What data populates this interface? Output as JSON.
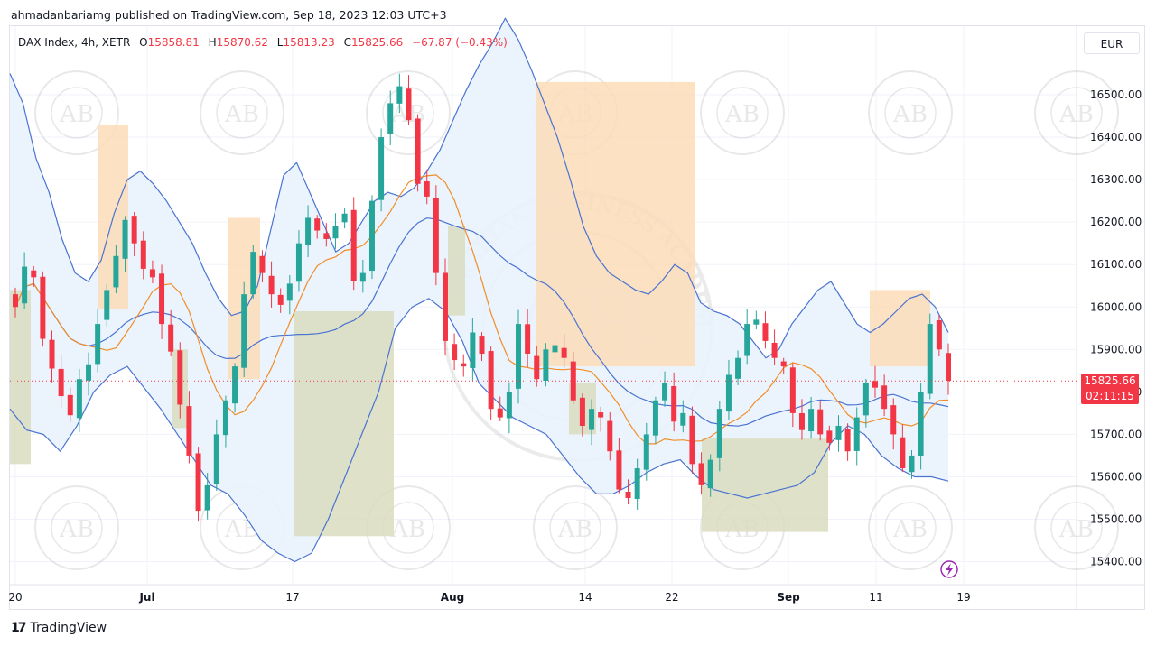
{
  "header": {
    "publish_line": "ahmadanbariamg published on TradingView.com, Sep 18, 2023 12:03 UTC+3"
  },
  "legend": {
    "symbol": "DAX Index, 4h, XETR",
    "open_label": "O",
    "open_value": "15858.81",
    "high_label": "H",
    "high_value": "15870.62",
    "low_label": "L",
    "low_value": "15813.23",
    "close_label": "C",
    "close_value": "15825.66",
    "change": "−67.87 (−0.43%)"
  },
  "currency_button": "EUR",
  "price_tag": {
    "price": "15825.66",
    "countdown": "02:11:15"
  },
  "footer": {
    "brand": "TradingView",
    "logo": "17"
  },
  "watermark": {
    "monogram": "AB",
    "ring_text": "ARABIAN BUSINESS ACADEMY"
  },
  "colors": {
    "up": "#26a69a",
    "down": "#f23645",
    "band": "#4a73d1",
    "basis_fast": "#f28c28",
    "band_fill": "#e9f3fc",
    "supply_zone": "#fcdcb8",
    "demand_zone": "#d9dcbf",
    "price_line": "#f23645"
  },
  "chart_data": {
    "type": "candlestick",
    "title": "DAX Index, 4h, XETR",
    "y_ticks": [
      "16500.00",
      "16400.00",
      "16300.00",
      "16200.00",
      "16100.00",
      "16000.00",
      "15900.00",
      "15800.00",
      "15700.00",
      "15600.00",
      "15500.00",
      "15400.00"
    ],
    "x_ticks": [
      "20",
      "Jul",
      "17",
      "Aug",
      "14",
      "22",
      "Sep",
      "11",
      "19"
    ],
    "ylim": [
      15360,
      16640
    ],
    "last_price": 15825.66,
    "close_path": [
      16000,
      16095,
      16070,
      15925,
      15855,
      15790,
      15745,
      15830,
      15865,
      15960,
      16040,
      16120,
      16205,
      16150,
      16090,
      16070,
      15960,
      15895,
      15770,
      15650,
      15520,
      15580,
      15700,
      15780,
      15860,
      16030,
      16130,
      16080,
      16030,
      16005,
      16055,
      16150,
      16210,
      16180,
      16160,
      16190,
      16220,
      16060,
      16080,
      16250,
      16400,
      16480,
      16520,
      16440,
      16290,
      16260,
      16080,
      15920,
      15875,
      15860,
      15940,
      15890,
      15760,
      15740,
      15800,
      15960,
      15890,
      15830,
      15900,
      15910,
      15880,
      15780,
      15720,
      15760,
      15740,
      15660,
      15570,
      15550,
      15620,
      15700,
      15780,
      15820,
      15730,
      15750,
      15630,
      15580,
      15640,
      15760,
      15840,
      15880,
      15960,
      15970,
      15920,
      15880,
      15860,
      15750,
      15710,
      15760,
      15700,
      15680,
      15720,
      15660,
      15740,
      15820,
      15810,
      15760,
      15700,
      15620,
      15650,
      15800,
      15960,
      15900,
      15826
    ],
    "bollinger_upper": [
      16550,
      16480,
      16350,
      16270,
      16160,
      16080,
      16060,
      16110,
      16220,
      16300,
      16320,
      16290,
      16250,
      16200,
      16150,
      16080,
      16020,
      15980,
      15990,
      16050,
      16180,
      16310,
      16340,
      16270,
      16200,
      16130,
      16150,
      16200,
      16250,
      16270,
      16260,
      16280,
      16320,
      16370,
      16440,
      16510,
      16570,
      16620,
      16680,
      16630,
      16560,
      16480,
      16400,
      16300,
      16190,
      16120,
      16080,
      16060,
      16040,
      16030,
      16060,
      16100,
      16080,
      16010,
      15990,
      15980,
      15960,
      15920,
      15880,
      15900,
      15960,
      16000,
      16040,
      16060,
      16010,
      15960,
      15940,
      15960,
      15990,
      16020,
      16030,
      16000,
      15940
    ],
    "bollinger_lower": [
      15760,
      15710,
      15700,
      15660,
      15720,
      15800,
      15840,
      15860,
      15810,
      15760,
      15700,
      15640,
      15580,
      15560,
      15510,
      15450,
      15420,
      15400,
      15420,
      15500,
      15600,
      15700,
      15800,
      15950,
      16000,
      16020,
      15990,
      15920,
      15820,
      15780,
      15740,
      15720,
      15700,
      15650,
      15600,
      15560,
      15560,
      15580,
      15610,
      15630,
      15640,
      15600,
      15570,
      15560,
      15550,
      15560,
      15570,
      15580,
      15610,
      15680,
      15720,
      15700,
      15650,
      15620,
      15600,
      15600,
      15590
    ]
  }
}
